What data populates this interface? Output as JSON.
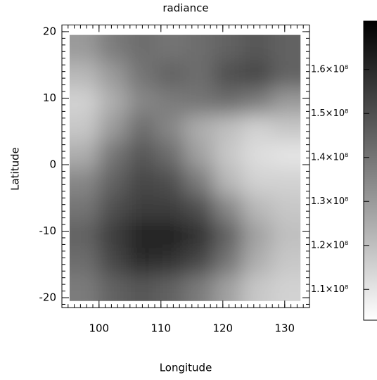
{
  "chart_data": {
    "type": "heatmap",
    "title": "radiance",
    "x_label": "Longitude",
    "y_label": "Latitude",
    "xlim": [
      94,
      134
    ],
    "ylim": [
      -21.5,
      21
    ],
    "xticks": [
      100,
      110,
      120,
      130
    ],
    "yticks": [
      -20,
      -10,
      0,
      10,
      20
    ],
    "x": [
      97.6,
      102.3,
      106.9,
      111.6,
      116.2,
      120.9,
      125.5,
      130.2
    ],
    "y": [
      17.5,
      13.5,
      9.5,
      5.5,
      1.5,
      -2.5,
      -6.5,
      -10.5,
      -14.5,
      -18.5
    ],
    "z": [
      [
        130000000,
        138000000,
        142000000,
        140000000,
        142000000,
        145000000,
        148000000,
        145000000
      ],
      [
        122000000,
        130000000,
        140000000,
        145000000,
        142000000,
        150000000,
        152000000,
        145000000
      ],
      [
        115000000,
        125000000,
        135000000,
        138000000,
        140000000,
        142000000,
        138000000,
        130000000
      ],
      [
        118000000,
        130000000,
        142000000,
        135000000,
        125000000,
        120000000,
        115000000,
        118000000
      ],
      [
        125000000,
        140000000,
        148000000,
        142000000,
        128000000,
        118000000,
        112000000,
        110000000
      ],
      [
        135000000,
        145000000,
        152000000,
        150000000,
        138000000,
        122000000,
        115000000,
        115000000
      ],
      [
        140000000,
        150000000,
        155000000,
        155000000,
        150000000,
        135000000,
        122000000,
        118000000
      ],
      [
        145000000,
        155000000,
        162000000,
        162000000,
        158000000,
        145000000,
        128000000,
        120000000
      ],
      [
        142000000,
        152000000,
        160000000,
        158000000,
        152000000,
        140000000,
        125000000,
        118000000
      ],
      [
        138000000,
        145000000,
        148000000,
        145000000,
        138000000,
        128000000,
        118000000,
        115000000
      ]
    ],
    "colormap": [
      "#ffffff",
      "#000000"
    ],
    "clim": [
      103000000,
      171000000
    ],
    "cticks": [
      {
        "value": 110000000,
        "label": "1.1×10⁸"
      },
      {
        "value": 120000000,
        "label": "1.2×10⁸"
      },
      {
        "value": 130000000,
        "label": "1.3×10⁸"
      },
      {
        "value": 140000000,
        "label": "1.4×10⁸"
      },
      {
        "value": 150000000,
        "label": "1.5×10⁸"
      },
      {
        "value": 160000000,
        "label": "1.6×10⁸"
      }
    ]
  }
}
